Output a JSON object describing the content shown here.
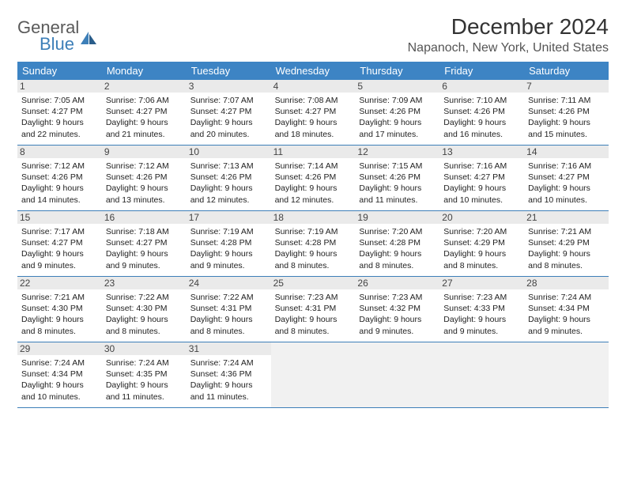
{
  "brand": {
    "line1": "General",
    "line2": "Blue"
  },
  "title": "December 2024",
  "location": "Napanoch, New York, United States",
  "colors": {
    "header_bg": "#3d84c4",
    "rule": "#3d7fb8",
    "daynum_bg": "#eaeaea",
    "empty_bg": "#f1f1f1",
    "text": "#222222"
  },
  "day_names": [
    "Sunday",
    "Monday",
    "Tuesday",
    "Wednesday",
    "Thursday",
    "Friday",
    "Saturday"
  ],
  "weeks": [
    [
      {
        "n": "1",
        "sr": "7:05 AM",
        "ss": "4:27 PM",
        "dl": "9 hours and 22 minutes."
      },
      {
        "n": "2",
        "sr": "7:06 AM",
        "ss": "4:27 PM",
        "dl": "9 hours and 21 minutes."
      },
      {
        "n": "3",
        "sr": "7:07 AM",
        "ss": "4:27 PM",
        "dl": "9 hours and 20 minutes."
      },
      {
        "n": "4",
        "sr": "7:08 AM",
        "ss": "4:27 PM",
        "dl": "9 hours and 18 minutes."
      },
      {
        "n": "5",
        "sr": "7:09 AM",
        "ss": "4:26 PM",
        "dl": "9 hours and 17 minutes."
      },
      {
        "n": "6",
        "sr": "7:10 AM",
        "ss": "4:26 PM",
        "dl": "9 hours and 16 minutes."
      },
      {
        "n": "7",
        "sr": "7:11 AM",
        "ss": "4:26 PM",
        "dl": "9 hours and 15 minutes."
      }
    ],
    [
      {
        "n": "8",
        "sr": "7:12 AM",
        "ss": "4:26 PM",
        "dl": "9 hours and 14 minutes."
      },
      {
        "n": "9",
        "sr": "7:12 AM",
        "ss": "4:26 PM",
        "dl": "9 hours and 13 minutes."
      },
      {
        "n": "10",
        "sr": "7:13 AM",
        "ss": "4:26 PM",
        "dl": "9 hours and 12 minutes."
      },
      {
        "n": "11",
        "sr": "7:14 AM",
        "ss": "4:26 PM",
        "dl": "9 hours and 12 minutes."
      },
      {
        "n": "12",
        "sr": "7:15 AM",
        "ss": "4:26 PM",
        "dl": "9 hours and 11 minutes."
      },
      {
        "n": "13",
        "sr": "7:16 AM",
        "ss": "4:27 PM",
        "dl": "9 hours and 10 minutes."
      },
      {
        "n": "14",
        "sr": "7:16 AM",
        "ss": "4:27 PM",
        "dl": "9 hours and 10 minutes."
      }
    ],
    [
      {
        "n": "15",
        "sr": "7:17 AM",
        "ss": "4:27 PM",
        "dl": "9 hours and 9 minutes."
      },
      {
        "n": "16",
        "sr": "7:18 AM",
        "ss": "4:27 PM",
        "dl": "9 hours and 9 minutes."
      },
      {
        "n": "17",
        "sr": "7:19 AM",
        "ss": "4:28 PM",
        "dl": "9 hours and 9 minutes."
      },
      {
        "n": "18",
        "sr": "7:19 AM",
        "ss": "4:28 PM",
        "dl": "9 hours and 8 minutes."
      },
      {
        "n": "19",
        "sr": "7:20 AM",
        "ss": "4:28 PM",
        "dl": "9 hours and 8 minutes."
      },
      {
        "n": "20",
        "sr": "7:20 AM",
        "ss": "4:29 PM",
        "dl": "9 hours and 8 minutes."
      },
      {
        "n": "21",
        "sr": "7:21 AM",
        "ss": "4:29 PM",
        "dl": "9 hours and 8 minutes."
      }
    ],
    [
      {
        "n": "22",
        "sr": "7:21 AM",
        "ss": "4:30 PM",
        "dl": "9 hours and 8 minutes."
      },
      {
        "n": "23",
        "sr": "7:22 AM",
        "ss": "4:30 PM",
        "dl": "9 hours and 8 minutes."
      },
      {
        "n": "24",
        "sr": "7:22 AM",
        "ss": "4:31 PM",
        "dl": "9 hours and 8 minutes."
      },
      {
        "n": "25",
        "sr": "7:23 AM",
        "ss": "4:31 PM",
        "dl": "9 hours and 8 minutes."
      },
      {
        "n": "26",
        "sr": "7:23 AM",
        "ss": "4:32 PM",
        "dl": "9 hours and 9 minutes."
      },
      {
        "n": "27",
        "sr": "7:23 AM",
        "ss": "4:33 PM",
        "dl": "9 hours and 9 minutes."
      },
      {
        "n": "28",
        "sr": "7:24 AM",
        "ss": "4:34 PM",
        "dl": "9 hours and 9 minutes."
      }
    ],
    [
      {
        "n": "29",
        "sr": "7:24 AM",
        "ss": "4:34 PM",
        "dl": "9 hours and 10 minutes."
      },
      {
        "n": "30",
        "sr": "7:24 AM",
        "ss": "4:35 PM",
        "dl": "9 hours and 11 minutes."
      },
      {
        "n": "31",
        "sr": "7:24 AM",
        "ss": "4:36 PM",
        "dl": "9 hours and 11 minutes."
      },
      null,
      null,
      null,
      null
    ]
  ],
  "labels": {
    "sunrise": "Sunrise:",
    "sunset": "Sunset:",
    "daylight": "Daylight:"
  }
}
